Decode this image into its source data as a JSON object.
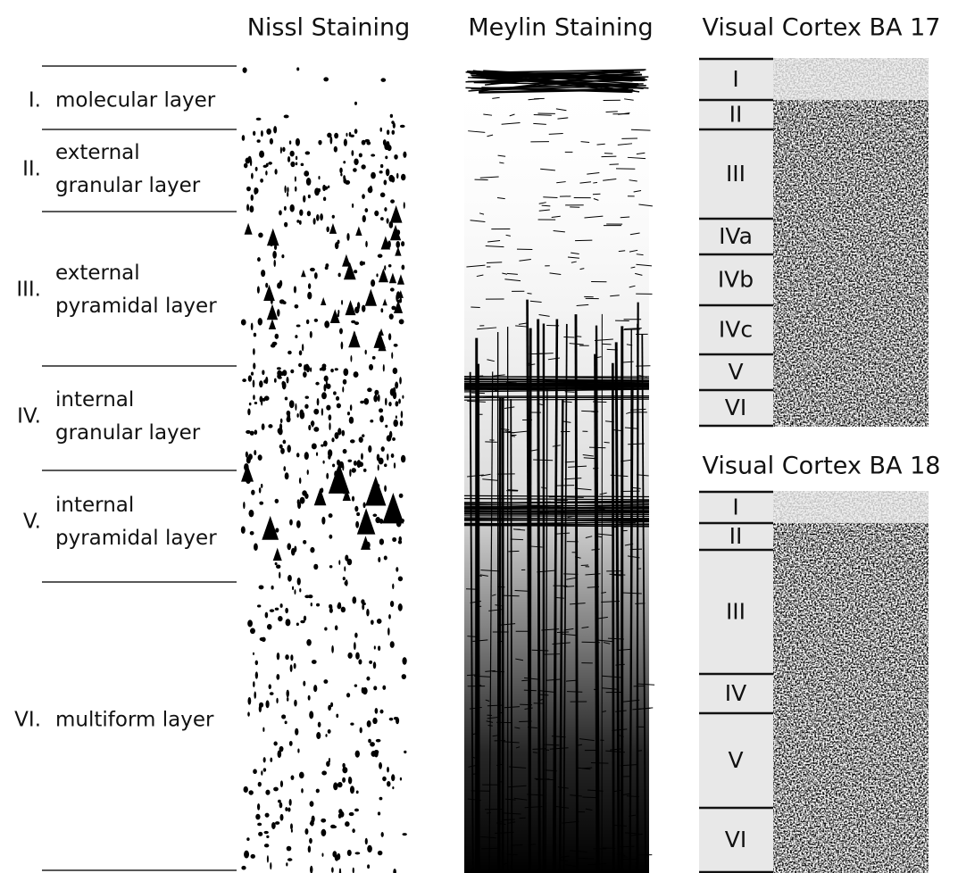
{
  "nissl_title": "Nissl Staining",
  "myelin_title": "Meylin Staining",
  "layers": [
    {
      "numeral": "I.",
      "name": [
        "molecular layer"
      ]
    },
    {
      "numeral": "II.",
      "name": [
        "external",
        "granular layer"
      ]
    },
    {
      "numeral": "III.",
      "name": [
        "external",
        "pyramidal layer"
      ]
    },
    {
      "numeral": "IV.",
      "name": [
        "internal",
        "granular layer"
      ]
    },
    {
      "numeral": "V.",
      "name": [
        "internal",
        "pyramidal layer"
      ]
    },
    {
      "numeral": "VI.",
      "name": [
        "multiform layer"
      ]
    }
  ],
  "ba17": {
    "title": "Visual Cortex BA 17",
    "layers": [
      "I",
      "II",
      "III",
      "IVa",
      "IVb",
      "IVc",
      "V",
      "VI"
    ]
  },
  "ba18": {
    "title": "Visual Cortex BA 18",
    "layers": [
      "I",
      "II",
      "III",
      "IV",
      "V",
      "VI"
    ]
  }
}
